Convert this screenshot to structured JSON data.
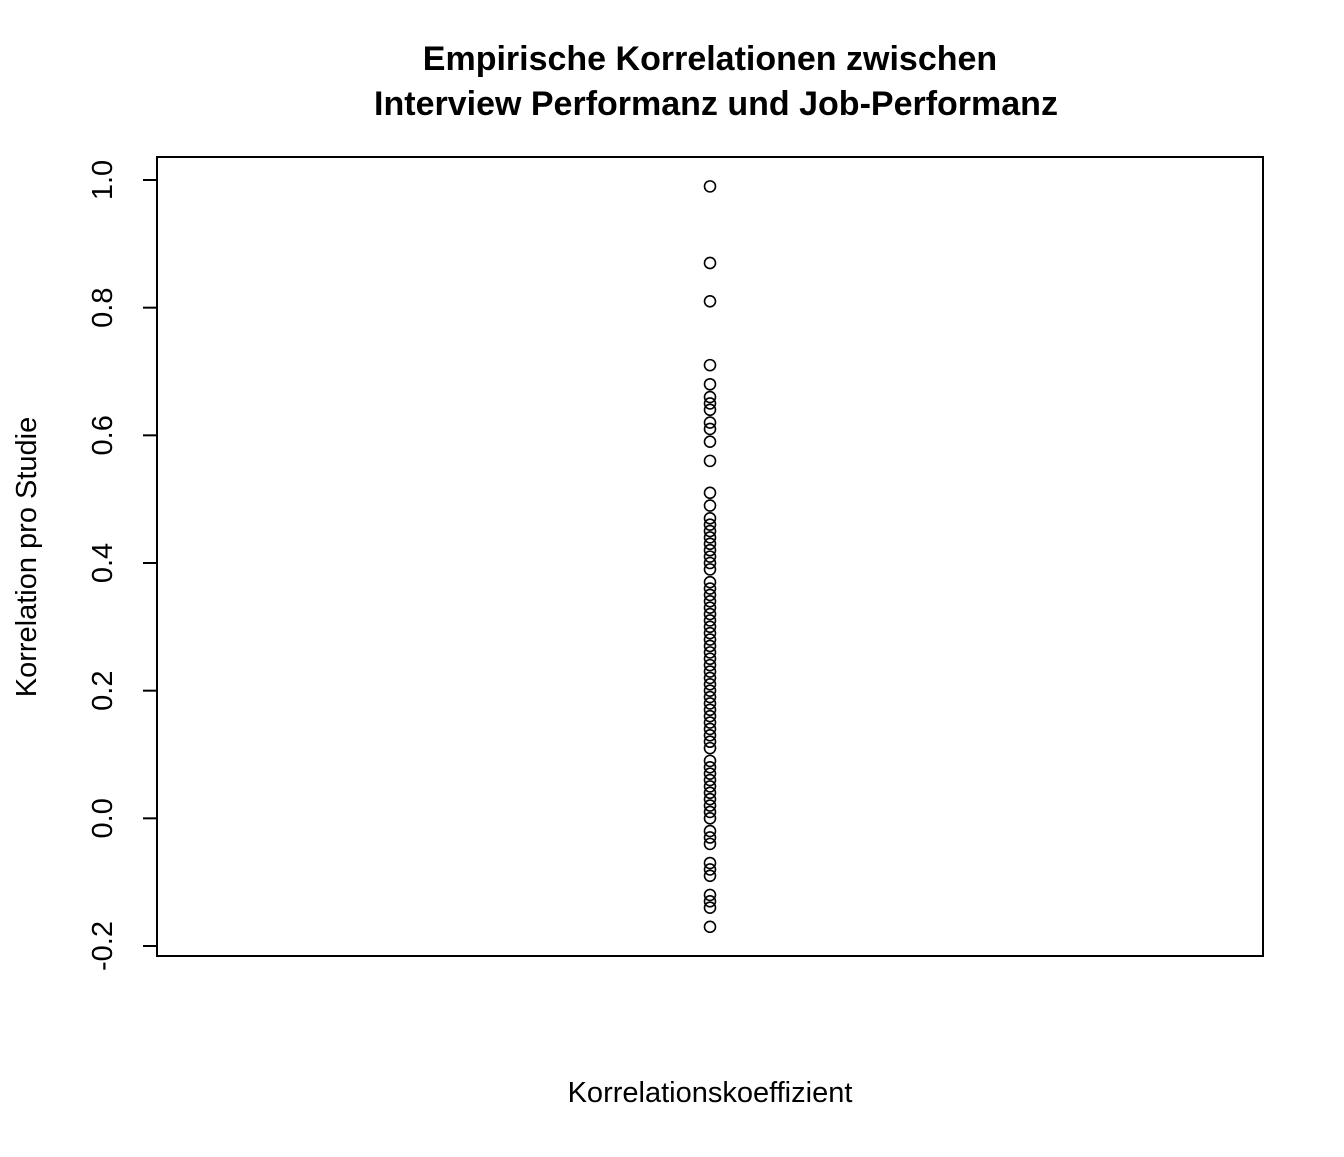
{
  "chart_data": {
    "type": "scatter",
    "title_lines": [
      "Empirische Korrelationen zwischen",
      "Interview Performanz und Job-Performanz"
    ],
    "xlabel": "Korrelationskoeffizient",
    "ylabel": "Korrelation pro Studie",
    "ylim": [
      -0.2,
      1.0
    ],
    "y_ticks": [
      -0.2,
      0.0,
      0.2,
      0.4,
      0.6,
      0.8,
      1.0
    ],
    "y_tick_labels": [
      "-0.2",
      "0.0",
      "0.2",
      "0.4",
      "0.6",
      "0.8",
      "1.0"
    ],
    "grid": false,
    "marker": "open-circle",
    "marker_color": "#000000",
    "series": [
      {
        "x": 1,
        "values": [
          0.99,
          0.87,
          0.81,
          0.71,
          0.68,
          0.66,
          0.65,
          0.64,
          0.62,
          0.61,
          0.59,
          0.56,
          0.51,
          0.49,
          0.47,
          0.46,
          0.45,
          0.44,
          0.43,
          0.42,
          0.41,
          0.4,
          0.39,
          0.37,
          0.36,
          0.35,
          0.34,
          0.33,
          0.32,
          0.31,
          0.3,
          0.29,
          0.28,
          0.27,
          0.26,
          0.25,
          0.24,
          0.23,
          0.22,
          0.21,
          0.2,
          0.19,
          0.18,
          0.17,
          0.16,
          0.15,
          0.14,
          0.13,
          0.12,
          0.11,
          0.09,
          0.08,
          0.07,
          0.06,
          0.05,
          0.04,
          0.03,
          0.02,
          0.01,
          0.0,
          -0.02,
          -0.03,
          -0.04,
          -0.07,
          -0.08,
          -0.09,
          -0.12,
          -0.13,
          -0.14,
          -0.17
        ]
      }
    ]
  }
}
